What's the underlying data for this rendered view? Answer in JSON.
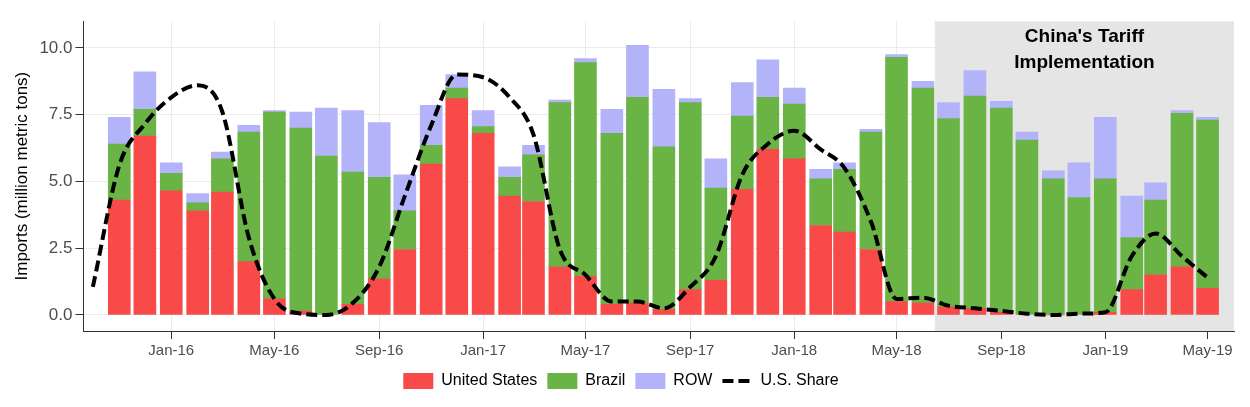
{
  "chart_data": {
    "type": "bar",
    "stacked": true,
    "ylabel": "Imports (million metric tons)",
    "x": [
      "2015-11",
      "2015-12",
      "2016-01",
      "2016-02",
      "2016-03",
      "2016-04",
      "2016-05",
      "2016-06",
      "2016-07",
      "2016-08",
      "2016-09",
      "2016-10",
      "2016-11",
      "2016-12",
      "2017-01",
      "2017-02",
      "2017-03",
      "2017-04",
      "2017-05",
      "2017-06",
      "2017-07",
      "2017-08",
      "2017-09",
      "2017-10",
      "2017-11",
      "2017-12",
      "2018-01",
      "2018-02",
      "2018-03",
      "2018-04",
      "2018-05",
      "2018-06",
      "2018-07",
      "2018-08",
      "2018-09",
      "2018-10",
      "2018-11",
      "2018-12",
      "2019-01",
      "2019-02",
      "2019-03",
      "2019-04",
      "2019-05"
    ],
    "series": [
      {
        "name": "United States",
        "color": "#f94a4a",
        "values": [
          4.3,
          6.7,
          4.65,
          3.9,
          4.6,
          2.0,
          0.6,
          0.15,
          null,
          0.4,
          1.35,
          2.45,
          5.65,
          8.1,
          6.8,
          4.45,
          4.25,
          1.8,
          1.45,
          0.4,
          0.45,
          0.2,
          0.95,
          1.3,
          4.7,
          6.2,
          5.85,
          3.35,
          3.1,
          2.45,
          0.5,
          0.45,
          0.3,
          0.25,
          0.1,
          null,
          0.0,
          null,
          0.1,
          0.95,
          1.5,
          1.8,
          1.0
        ]
      },
      {
        "name": "Brazil",
        "color": "#6ab446",
        "values": [
          2.1,
          1.0,
          0.65,
          0.3,
          1.25,
          4.85,
          7.0,
          6.85,
          5.95,
          4.95,
          3.8,
          1.45,
          0.7,
          0.4,
          0.25,
          0.7,
          1.75,
          6.15,
          8.0,
          6.4,
          7.7,
          6.1,
          7.0,
          3.45,
          2.75,
          1.95,
          2.05,
          1.75,
          2.35,
          4.4,
          9.15,
          8.05,
          7.05,
          7.95,
          7.65,
          6.55,
          5.1,
          4.4,
          5.0,
          1.95,
          2.8,
          5.75,
          6.3
        ]
      },
      {
        "name": "ROW",
        "color": "#b3b3fa",
        "values": [
          1.0,
          1.4,
          0.4,
          0.35,
          0.25,
          0.25,
          0.05,
          0.6,
          1.8,
          2.3,
          2.05,
          1.35,
          1.5,
          0.5,
          0.6,
          0.4,
          0.35,
          0.1,
          0.15,
          0.9,
          1.95,
          2.15,
          0.15,
          1.1,
          1.25,
          1.4,
          0.6,
          0.35,
          0.25,
          0.1,
          0.1,
          0.25,
          0.6,
          0.95,
          0.25,
          0.3,
          0.3,
          1.3,
          2.3,
          1.55,
          0.65,
          0.1,
          0.1
        ]
      },
      {
        "name": "U.S. Share",
        "type": "line",
        "color": "#000000",
        "line_style": "dashed",
        "marker": "none",
        "x": [
          "2015-10",
          "2015-11",
          "2015-12",
          "2016-01",
          "2016-02",
          "2016-03",
          "2016-04",
          "2016-05",
          "2016-06",
          "2016-07",
          "2016-08",
          "2016-09",
          "2016-10",
          "2016-11",
          "2016-12",
          "2017-01",
          "2017-02",
          "2017-03",
          "2017-04",
          "2017-05",
          "2017-06",
          "2017-07",
          "2017-08",
          "2017-09",
          "2017-10",
          "2017-11",
          "2017-12",
          "2018-01",
          "2018-02",
          "2018-03",
          "2018-04",
          "2018-05",
          "2018-06",
          "2018-07",
          "2018-08",
          "2018-09",
          "2018-10",
          "2018-11",
          "2018-12",
          "2019-01",
          "2019-02",
          "2019-03",
          "2019-04",
          "2019-05"
        ],
        "values": [
          1.05,
          5.6,
          7.15,
          8.15,
          8.6,
          7.6,
          2.9,
          0.6,
          0.05,
          0.0,
          0.45,
          1.8,
          4.45,
          7.1,
          9.0,
          8.9,
          8.15,
          6.75,
          2.45,
          1.5,
          0.5,
          0.5,
          0.25,
          1.05,
          2.2,
          5.25,
          6.4,
          6.9,
          6.2,
          5.5,
          3.5,
          0.6,
          0.65,
          0.35,
          0.25,
          0.15,
          0.05,
          0.0,
          0.05,
          0.1,
          2.2,
          3.05,
          2.2,
          1.4
        ]
      }
    ],
    "xlim": [
      "2015-09-20",
      "2019-06-01"
    ],
    "xticks": [
      {
        "value": "2016-01",
        "label": "Jan-16"
      },
      {
        "value": "2016-05",
        "label": "May-16"
      },
      {
        "value": "2016-09",
        "label": "Sep-16"
      },
      {
        "value": "2017-01",
        "label": "Jan-17"
      },
      {
        "value": "2017-05",
        "label": "May-17"
      },
      {
        "value": "2017-09",
        "label": "Sep-17"
      },
      {
        "value": "2018-01",
        "label": "Jan-18"
      },
      {
        "value": "2018-05",
        "label": "May-18"
      },
      {
        "value": "2018-09",
        "label": "Sep-18"
      },
      {
        "value": "2019-01",
        "label": "Jan-19"
      },
      {
        "value": "2019-05",
        "label": "May-19"
      }
    ],
    "ylim": [
      -0.6,
      11
    ],
    "yticks": [
      {
        "value": 0,
        "label": "0.0"
      },
      2.5,
      {
        "value": 5,
        "label": "5.0"
      },
      7.5,
      {
        "value": 10,
        "label": "10.0"
      }
    ],
    "bands": [
      {
        "axis": "x",
        "from": "2018-06-15",
        "to": "2019-06-01",
        "label": "China's Tariff Implementation",
        "color": "#e5e5e5"
      }
    ],
    "grid": true,
    "legend": "bottom"
  }
}
